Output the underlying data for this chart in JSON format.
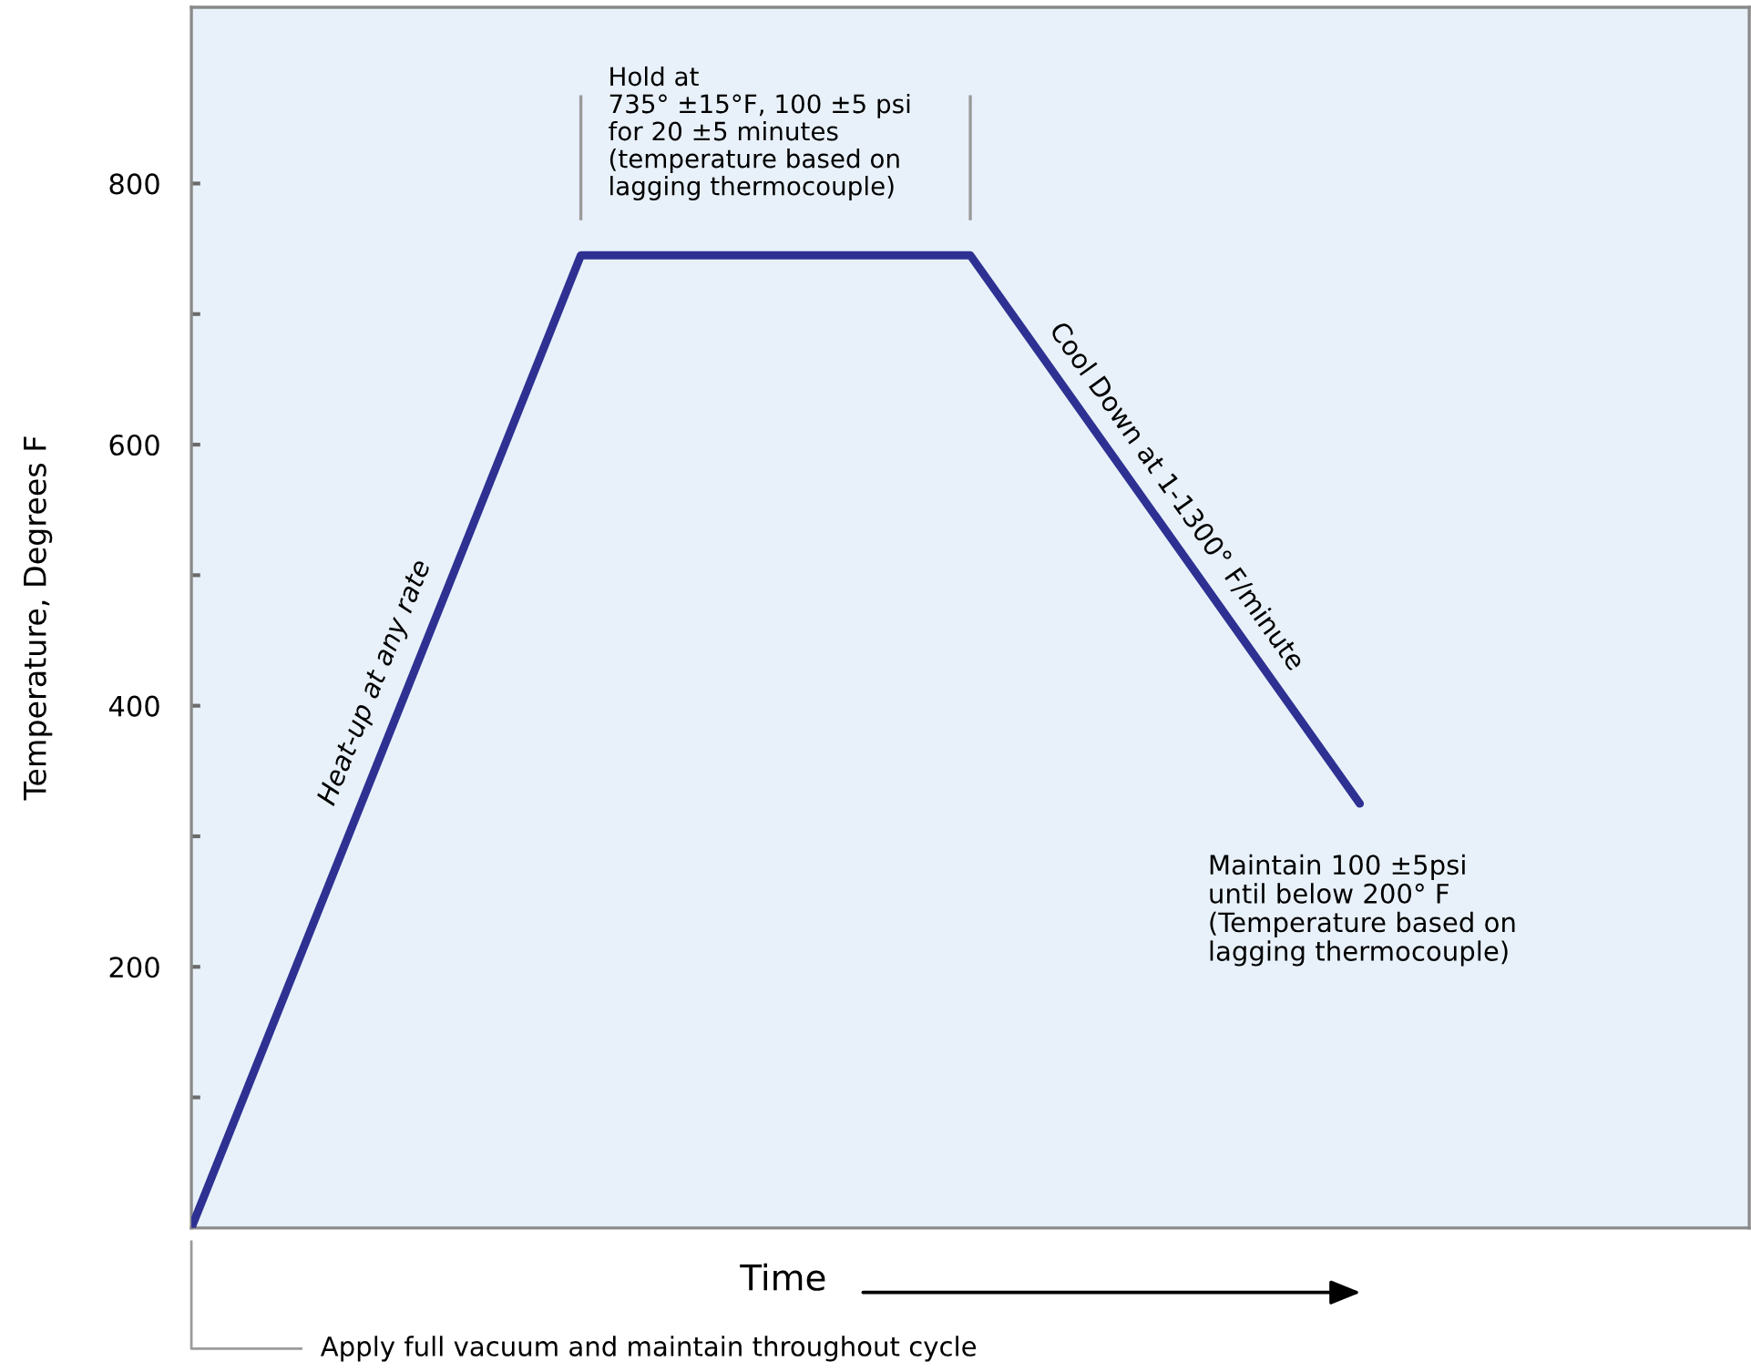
{
  "chart_data": {
    "type": "line",
    "xlabel": "Time",
    "ylabel": "Temperature, Degrees F",
    "categories": [
      null,
      null,
      null,
      null
    ],
    "series": [
      {
        "color": "#2e3192",
        "values": [
          0,
          745,
          745,
          325
        ]
      }
    ],
    "ylim": [
      0,
      935
    ],
    "yticks": [
      {
        "value": 100,
        "label": null
      },
      200,
      {
        "value": 300,
        "label": null
      },
      400,
      {
        "value": 500,
        "label": null
      },
      600,
      {
        "value": 700,
        "label": null
      },
      800
    ],
    "tick_labels": "y",
    "grid": false,
    "legend": false,
    "marker": "none",
    "line_style": "solid",
    "annotations": [
      "Heat-up at any rate",
      "Hold at\n735° ±15°F, 100 ±5 psi\nfor 20 ±5 minutes\n(temperature based on\nlagging thermocouple)",
      "Cool Down at 1-1300° F/minute",
      "Maintain 100 ±5psi\nuntil below 200° F\n(Temperature based on\nlagging thermocouple)",
      "Apply full vacuum and maintain throughout cycle"
    ]
  }
}
